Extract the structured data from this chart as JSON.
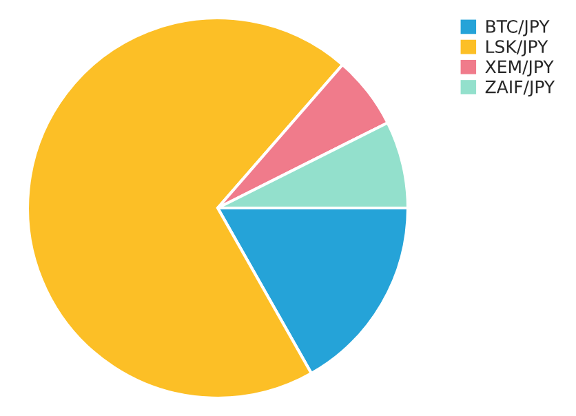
{
  "chart_data": {
    "type": "pie",
    "categories": [
      "BTC/JPY",
      "LSK/JPY",
      "XEM/JPY",
      "ZAIF/JPY"
    ],
    "values": [
      16.8,
      69.6,
      6.2,
      7.4
    ],
    "colors": [
      "#25a3d8",
      "#fcbf26",
      "#f07b8b",
      "#93e0cc"
    ],
    "legend": "top right"
  }
}
